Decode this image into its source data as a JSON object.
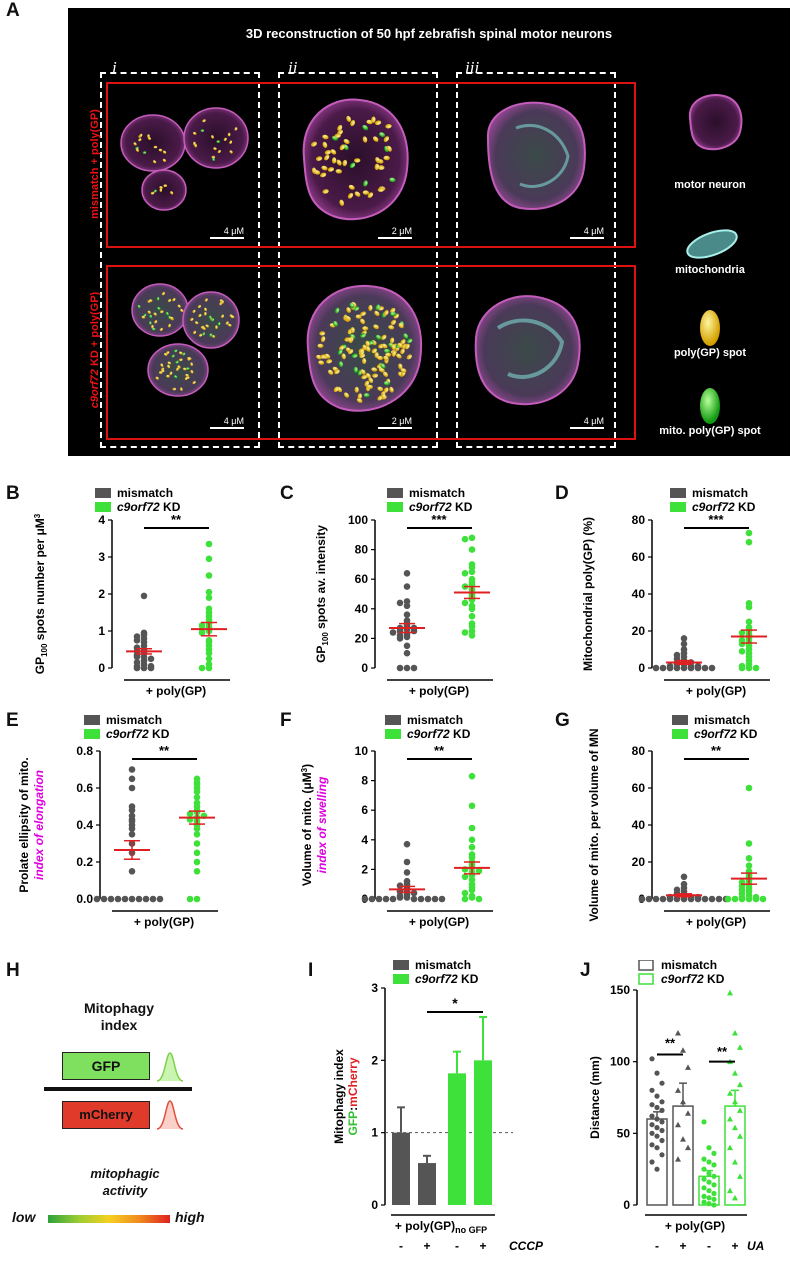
{
  "panel_labels": {
    "A": "A",
    "B": "B",
    "C": "C",
    "D": "D",
    "E": "E",
    "F": "F",
    "G": "G",
    "H": "H",
    "I": "I",
    "J": "J"
  },
  "panelA": {
    "title": "3D reconstruction of 50 hpf zebrafish spinal motor neurons",
    "columns": [
      "i",
      "ii",
      "iii"
    ],
    "rows": [
      "mismatch + poly(GP)",
      "c9orf72 KD + poly(GP)"
    ],
    "row2_italic": "c9orf72",
    "row2_rest": " KD + poly(GP)",
    "scalebars": [
      [
        "4 μM",
        "2 μM",
        "4 μM"
      ],
      [
        "4 μM",
        "2 μM",
        "4 μM"
      ]
    ],
    "legend": [
      "motor neuron",
      "mitochondria",
      "poly(GP) spot",
      "mito. poly(GP) spot"
    ],
    "colors": {
      "neuron": "#b04aa8",
      "mito": "#7fd6cf",
      "spot": "#f5c518",
      "mitospot": "#22c81e",
      "frame": "#dd1111"
    }
  },
  "legend_common": {
    "mismatch": "mismatch",
    "kd_italic": "c9orf72",
    "kd_rest": " KD"
  },
  "colors": {
    "mismatch": "#555555",
    "kd": "#3ee03a",
    "mean": "#e02020"
  },
  "chart_data": [
    {
      "id": "B",
      "type": "scatter",
      "ylabel": "GP100 spots number per μM3",
      "ylim": [
        0,
        4
      ],
      "yticks": [
        0,
        1,
        2,
        3,
        4
      ],
      "xlabel": "+ poly(GP)",
      "sig": "**",
      "series": [
        {
          "name": "mismatch",
          "mean": 0.45,
          "sem": 0.07,
          "values": [
            1.95,
            0.95,
            0.9,
            0.85,
            0.8,
            0.75,
            0.7,
            0.6,
            0.55,
            0.5,
            0.45,
            0.4,
            0.35,
            0.3,
            0.3,
            0.25,
            0.2,
            0.15,
            0.1,
            0.05,
            0.05,
            0.0,
            0.0,
            0.0
          ]
        },
        {
          "name": "c9orf72 KD",
          "mean": 1.05,
          "sem": 0.18,
          "values": [
            3.35,
            2.95,
            2.5,
            2.05,
            1.9,
            1.6,
            1.5,
            1.4,
            1.3,
            1.2,
            1.15,
            1.1,
            1.05,
            1.0,
            0.95,
            0.75,
            0.7,
            0.6,
            0.5,
            0.4,
            0.25,
            0.1,
            0.0,
            0.0
          ]
        }
      ]
    },
    {
      "id": "C",
      "type": "scatter",
      "ylabel": "GP100 spots av. intensity",
      "ylim": [
        0,
        100
      ],
      "yticks": [
        0,
        20,
        40,
        60,
        80,
        100
      ],
      "xlabel": "+ poly(GP)",
      "sig": "***",
      "series": [
        {
          "name": "mismatch",
          "mean": 27,
          "sem": 3,
          "values": [
            64,
            55,
            45,
            44,
            42,
            36,
            32,
            30,
            28,
            27,
            27,
            26,
            25,
            25,
            24,
            23,
            22,
            21,
            20,
            15,
            10,
            0,
            0,
            0
          ]
        },
        {
          "name": "c9orf72 KD",
          "mean": 51,
          "sem": 4,
          "values": [
            88,
            87,
            80,
            70,
            68,
            65,
            64,
            60,
            58,
            56,
            55,
            53,
            50,
            48,
            46,
            44,
            42,
            40,
            35,
            30,
            28,
            25,
            24,
            22
          ]
        }
      ]
    },
    {
      "id": "D",
      "type": "scatter",
      "ylabel": "Mitochondrial poly(GP) (%)",
      "ylim": [
        0,
        80
      ],
      "yticks": [
        0,
        20,
        40,
        60,
        80
      ],
      "xlabel": "+ poly(GP)",
      "sig": "***",
      "series": [
        {
          "name": "mismatch",
          "mean": 3,
          "sem": 1,
          "values": [
            16,
            13,
            10,
            8,
            7,
            6,
            5,
            4,
            3,
            3,
            2,
            2,
            1,
            1,
            1,
            0,
            0,
            0,
            0,
            0,
            0,
            0,
            0,
            0
          ]
        },
        {
          "name": "c9orf72 KD",
          "mean": 17,
          "sem": 3.5,
          "values": [
            73,
            68,
            35,
            33,
            25,
            22,
            20,
            19,
            18,
            16,
            15,
            14,
            13,
            12,
            10,
            9,
            8,
            6,
            4,
            2,
            1,
            0,
            0,
            0
          ]
        }
      ]
    },
    {
      "id": "E",
      "type": "scatter",
      "ylabel": "Prolate ellipsity of mito.",
      "ylabel2": "index of elongation",
      "ylim": [
        0,
        0.8
      ],
      "yticks": [
        "0.0",
        "0.2",
        "0.4",
        "0.6",
        "0.8"
      ],
      "xlabel": "+ poly(GP)",
      "sig": "**",
      "series": [
        {
          "name": "mismatch",
          "mean": 0.265,
          "sem": 0.05,
          "values": [
            0.7,
            0.65,
            0.6,
            0.5,
            0.48,
            0.45,
            0.43,
            0.42,
            0.4,
            0.38,
            0.35,
            0.3,
            0.25,
            0.15,
            0.0,
            0.0,
            0.0,
            0.0,
            0.0,
            0.0,
            0.0,
            0.0,
            0.0,
            0.0
          ]
        },
        {
          "name": "c9orf72 KD",
          "mean": 0.44,
          "sem": 0.035,
          "values": [
            0.65,
            0.63,
            0.62,
            0.6,
            0.58,
            0.55,
            0.52,
            0.5,
            0.48,
            0.47,
            0.46,
            0.45,
            0.44,
            0.43,
            0.42,
            0.4,
            0.38,
            0.35,
            0.3,
            0.25,
            0.2,
            0.15,
            0.0,
            0.0
          ]
        }
      ]
    },
    {
      "id": "F",
      "type": "scatter",
      "ylabel": "Volume of mito. (μM3)",
      "ylabel2": "index of swelling",
      "ylim": [
        0,
        10
      ],
      "yticks": [
        0,
        2,
        4,
        6,
        8,
        10
      ],
      "xlabel": "+ poly(GP)",
      "sig": "**",
      "series": [
        {
          "name": "mismatch",
          "mean": 0.65,
          "sem": 0.2,
          "values": [
            3.7,
            2.5,
            1.8,
            1.2,
            1.0,
            0.9,
            0.7,
            0.6,
            0.5,
            0.4,
            0.3,
            0.2,
            0.1,
            0.1,
            0.0,
            0.0,
            0.0,
            0.0,
            0.0,
            0.0,
            0.0,
            0.0,
            0.0,
            0.0
          ]
        },
        {
          "name": "c9orf72 KD",
          "mean": 2.1,
          "sem": 0.4,
          "values": [
            8.3,
            6.3,
            4.8,
            4.0,
            3.5,
            3.0,
            2.8,
            2.5,
            2.3,
            2.1,
            2.0,
            1.9,
            1.8,
            1.6,
            1.5,
            1.3,
            1.0,
            0.8,
            0.6,
            0.4,
            0.2,
            0.1,
            0.0,
            0.0
          ]
        }
      ]
    },
    {
      "id": "G",
      "type": "scatter",
      "ylabel": "Volume of mito. per volume of MN",
      "ylim": [
        0,
        80
      ],
      "yticks": [
        0,
        20,
        40,
        60,
        80
      ],
      "xlabel": "+ poly(GP)",
      "sig": "**",
      "series": [
        {
          "name": "mismatch",
          "mean": 2,
          "sem": 0.8,
          "values": [
            12,
            8,
            6,
            5,
            4,
            3,
            2,
            2,
            1,
            1,
            1,
            0,
            0,
            0,
            0,
            0,
            0,
            0,
            0,
            0,
            0,
            0,
            0,
            0
          ]
        },
        {
          "name": "c9orf72 KD",
          "mean": 11,
          "sem": 3,
          "values": [
            60,
            30,
            22,
            18,
            15,
            13,
            12,
            10,
            9,
            8,
            7,
            6,
            5,
            4,
            3,
            2,
            1,
            1,
            0,
            0,
            0,
            0,
            0,
            0
          ]
        }
      ]
    },
    {
      "id": "I",
      "type": "bar",
      "ylabel": "Mitophagy index",
      "ylabel_gfp": "GFP",
      "ylabel_colon": ":",
      "ylabel_mch": "mCherry",
      "ylim": [
        0,
        3
      ],
      "yticks": [
        0,
        1,
        2,
        3
      ],
      "xlabel": "+ poly(GP)",
      "xlabel_sub": "no GFP",
      "sig": "*",
      "ticks": [
        "-",
        "+",
        "-",
        "+"
      ],
      "treatment": "CCCP",
      "bars": [
        {
          "group": "mismatch",
          "treat": "-",
          "value": 1.0,
          "err": 0.35
        },
        {
          "group": "mismatch",
          "treat": "+",
          "value": 0.58,
          "err": 0.1
        },
        {
          "group": "c9orf72 KD",
          "treat": "-",
          "value": 1.82,
          "err": 0.3
        },
        {
          "group": "c9orf72 KD",
          "treat": "+",
          "value": 2.0,
          "err": 0.6
        }
      ]
    },
    {
      "id": "J",
      "type": "bar",
      "ylabel": "Distance (mm)",
      "ylim": [
        0,
        150
      ],
      "yticks": [
        0,
        50,
        100,
        150
      ],
      "xlabel": "+ poly(GP)",
      "sigs": [
        "**",
        "**"
      ],
      "ticks": [
        "-",
        "+",
        "-",
        "+"
      ],
      "treatment": "UA",
      "bars": [
        {
          "group": "mismatch",
          "treat": "-",
          "value": 60,
          "err": 5,
          "points": [
            102,
            92,
            85,
            80,
            76,
            72,
            70,
            68,
            66,
            62,
            60,
            58,
            56,
            54,
            52,
            50,
            48,
            45,
            42,
            40,
            35,
            30,
            25
          ]
        },
        {
          "group": "mismatch",
          "treat": "+",
          "value": 69,
          "err": 16,
          "points": [
            120,
            108,
            96,
            80,
            72,
            64,
            56,
            46,
            40,
            32
          ]
        },
        {
          "group": "c9orf72 KD",
          "treat": "-",
          "value": 20,
          "err": 4,
          "points": [
            58,
            40,
            36,
            32,
            30,
            28,
            25,
            22,
            20,
            18,
            16,
            14,
            12,
            10,
            8,
            6,
            5,
            4,
            2,
            1,
            0
          ]
        },
        {
          "group": "c9orf72 KD",
          "treat": "+",
          "value": 69,
          "err": 11,
          "points": [
            148,
            120,
            110,
            100,
            92,
            84,
            78,
            72,
            66,
            60,
            54,
            48,
            40,
            30,
            20,
            10,
            5
          ]
        }
      ]
    }
  ],
  "panelH": {
    "title": "Mitophagy",
    "title2": "index",
    "gfp": "GFP",
    "mcherry": "mCherry",
    "activity": "mitophagic",
    "activity2": "activity",
    "low": "low",
    "high": "high"
  }
}
